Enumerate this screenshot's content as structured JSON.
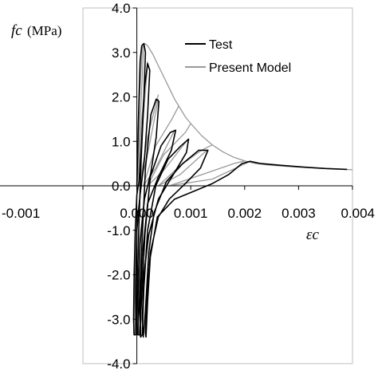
{
  "chart_data": {
    "type": "line",
    "xlabel": "εc",
    "ylabel": "fc",
    "ylabel_unit": "(MPa)",
    "xlim": [
      -0.001,
      0.004
    ],
    "ylim": [
      -4.0,
      4.0
    ],
    "grid": false,
    "legend_position": "top-right",
    "x_ticks": [
      {
        "value": -0.001,
        "label": "-0.001"
      },
      {
        "value": 0.0,
        "label": "0.000"
      },
      {
        "value": 0.001,
        "label": "0.001"
      },
      {
        "value": 0.002,
        "label": "0.002"
      },
      {
        "value": 0.003,
        "label": "0.003"
      },
      {
        "value": 0.004,
        "label": "0.004"
      }
    ],
    "y_ticks": [
      {
        "value": 4.0,
        "label": "4.0"
      },
      {
        "value": 3.0,
        "label": "3.0"
      },
      {
        "value": 2.0,
        "label": "2.0"
      },
      {
        "value": 1.0,
        "label": "1.0"
      },
      {
        "value": 0.0,
        "label": "0.0"
      },
      {
        "value": -1.0,
        "label": "-1.0"
      },
      {
        "value": -2.0,
        "label": "-2.0"
      },
      {
        "value": -3.0,
        "label": "-3.0"
      },
      {
        "value": -4.0,
        "label": "-4.0"
      }
    ],
    "series": [
      {
        "name": "Test",
        "color": "#000000",
        "segments": [
          [
            [
              0.0,
              0.0
            ],
            [
              3e-05,
              1.5
            ],
            [
              6e-05,
              2.8
            ],
            [
              9e-05,
              3.15
            ],
            [
              0.00013,
              3.2
            ],
            [
              0.00016,
              3.0
            ],
            [
              0.00013,
              2.0
            ],
            [
              8e-05,
              0.8
            ],
            [
              4e-05,
              0.1
            ],
            [
              0.0,
              -0.2
            ],
            [
              -3e-05,
              -1.0
            ],
            [
              -5e-05,
              -2.0
            ],
            [
              -6e-05,
              -3.0
            ],
            [
              -5e-05,
              -3.35
            ],
            [
              -2e-05,
              -3.35
            ],
            [
              0.0,
              -2.7
            ],
            [
              3e-05,
              -1.2
            ],
            [
              8e-05,
              0.6
            ],
            [
              0.00014,
              2.2
            ],
            [
              0.0002,
              2.75
            ],
            [
              0.00024,
              2.6
            ],
            [
              0.0002,
              1.6
            ],
            [
              0.00014,
              0.6
            ],
            [
              6e-05,
              -0.2
            ]
          ],
          [
            [
              6e-05,
              -0.2
            ],
            [
              0.0,
              -1.0
            ],
            [
              -2e-05,
              -2.2
            ],
            [
              -2e-05,
              -3.3
            ],
            [
              1e-05,
              -3.35
            ],
            [
              4e-05,
              -2.8
            ],
            [
              9e-05,
              -1.4
            ],
            [
              0.00016,
              0.4
            ],
            [
              0.00026,
              1.6
            ],
            [
              0.00036,
              1.95
            ],
            [
              0.00041,
              1.9
            ],
            [
              0.00036,
              1.1
            ],
            [
              0.00026,
              0.3
            ],
            [
              0.00014,
              -0.3
            ]
          ],
          [
            [
              0.00014,
              -0.3
            ],
            [
              6e-05,
              -1.3
            ],
            [
              2e-05,
              -2.5
            ],
            [
              2e-05,
              -3.35
            ],
            [
              5e-05,
              -3.35
            ],
            [
              9e-05,
              -2.5
            ],
            [
              0.00015,
              -1.1
            ],
            [
              0.00025,
              0.2
            ],
            [
              0.00045,
              0.9
            ],
            [
              0.00062,
              1.2
            ],
            [
              0.00072,
              1.25
            ],
            [
              0.00064,
              0.8
            ],
            [
              0.0004,
              0.2
            ],
            [
              0.0002,
              -0.4
            ]
          ],
          [
            [
              0.0002,
              -0.4
            ],
            [
              0.0001,
              -1.6
            ],
            [
              6e-05,
              -2.8
            ],
            [
              7e-05,
              -3.4
            ],
            [
              0.0001,
              -3.35
            ],
            [
              0.00013,
              -2.3
            ],
            [
              0.0002,
              -1.0
            ],
            [
              0.00035,
              0.0
            ],
            [
              0.00058,
              0.6
            ],
            [
              0.00082,
              0.9
            ],
            [
              0.00096,
              1.05
            ],
            [
              0.00092,
              0.75
            ],
            [
              0.0007,
              0.3
            ],
            [
              0.0004,
              -0.3
            ]
          ],
          [
            [
              0.0004,
              -0.3
            ],
            [
              0.00022,
              -1.1
            ],
            [
              0.00013,
              -2.0
            ],
            [
              0.0001,
              -3.0
            ],
            [
              0.00012,
              -3.4
            ],
            [
              0.00016,
              -2.8
            ],
            [
              0.00022,
              -1.5
            ],
            [
              0.00032,
              -0.6
            ],
            [
              0.00055,
              0.1
            ],
            [
              0.00085,
              0.5
            ],
            [
              0.00115,
              0.8
            ],
            [
              0.00132,
              0.8
            ],
            [
              0.00118,
              0.4
            ],
            [
              0.0009,
              0.05
            ],
            [
              0.0006,
              -0.3
            ]
          ],
          [
            [
              0.0006,
              -0.3
            ],
            [
              0.0004,
              -0.7
            ],
            [
              0.00025,
              -1.5
            ],
            [
              0.00018,
              -2.6
            ],
            [
              0.00016,
              -3.3
            ],
            [
              0.00017,
              -3.4
            ],
            [
              0.0002,
              -2.6
            ],
            [
              0.00025,
              -1.6
            ],
            [
              0.00038,
              -0.7
            ],
            [
              0.0007,
              -0.3
            ],
            [
              0.0011,
              -0.1
            ],
            [
              0.0014,
              0.05
            ],
            [
              0.0017,
              0.25
            ],
            [
              0.00195,
              0.5
            ],
            [
              0.0021,
              0.55
            ],
            [
              0.0023,
              0.5
            ],
            [
              0.0027,
              0.46
            ],
            [
              0.0031,
              0.42
            ],
            [
              0.0035,
              0.39
            ],
            [
              0.0039,
              0.37
            ]
          ]
        ]
      },
      {
        "name": "Present Model",
        "color": "#999999",
        "segments": [
          [
            [
              0.0,
              0.0
            ],
            [
              5e-05,
              2.0
            ],
            [
              0.0001,
              3.1
            ],
            [
              0.00015,
              3.2
            ],
            [
              0.0002,
              3.15
            ],
            [
              0.0003,
              2.95
            ],
            [
              0.0004,
              2.7
            ],
            [
              0.0005,
              2.45
            ],
            [
              0.0006,
              2.2
            ],
            [
              0.0007,
              1.95
            ],
            [
              0.0008,
              1.75
            ],
            [
              0.0009,
              1.55
            ],
            [
              0.001,
              1.4
            ],
            [
              0.0012,
              1.13
            ],
            [
              0.0014,
              0.92
            ],
            [
              0.0016,
              0.76
            ],
            [
              0.0018,
              0.64
            ],
            [
              0.002,
              0.56
            ],
            [
              0.0022,
              0.5
            ],
            [
              0.0025,
              0.46
            ],
            [
              0.003,
              0.42
            ],
            [
              0.0035,
              0.39
            ],
            [
              0.004,
              0.36
            ]
          ],
          [
            [
              0.00013,
              3.2
            ],
            [
              5e-05,
              1.2
            ],
            [
              0.0,
              0.0
            ]
          ],
          [
            [
              0.0002,
              2.75
            ],
            [
              7e-05,
              0.8
            ],
            [
              0.0,
              0.0
            ],
            [
              9e-05,
              1.5
            ],
            [
              0.0002,
              2.8
            ]
          ],
          [
            [
              0.0004,
              1.95
            ],
            [
              0.00018,
              0.6
            ],
            [
              5e-05,
              0.0
            ],
            [
              0.0002,
              1.1
            ],
            [
              0.0004,
              2.05
            ]
          ],
          [
            [
              0.0007,
              1.25
            ],
            [
              0.00035,
              0.4
            ],
            [
              0.00012,
              0.0
            ],
            [
              0.00035,
              0.9
            ],
            [
              0.00065,
              1.5
            ],
            [
              0.00078,
              1.8
            ]
          ],
          [
            [
              0.00095,
              1.05
            ],
            [
              0.0005,
              0.35
            ],
            [
              0.0002,
              0.0
            ],
            [
              0.0005,
              0.7
            ],
            [
              0.0009,
              1.2
            ],
            [
              0.001,
              1.4
            ]
          ],
          [
            [
              0.0013,
              0.8
            ],
            [
              0.0008,
              0.25
            ],
            [
              0.0004,
              0.0
            ],
            [
              0.0008,
              0.45
            ],
            [
              0.0012,
              0.8
            ],
            [
              0.0014,
              0.92
            ]
          ],
          [
            [
              0.0021,
              0.55
            ],
            [
              0.0014,
              0.15
            ],
            [
              0.0006,
              0.0
            ],
            [
              0.0012,
              0.25
            ],
            [
              0.0018,
              0.5
            ],
            [
              0.002,
              0.56
            ]
          ],
          [
            [
              5e-05,
              -0.3
            ],
            [
              0.0,
              -0.8
            ],
            [
              -5e-05,
              -3.0
            ],
            [
              -6e-05,
              -3.35
            ]
          ],
          [
            [
              0.00014,
              -0.3
            ],
            [
              5e-05,
              -1.2
            ],
            [
              3e-05,
              -3.3
            ]
          ],
          [
            [
              0.0002,
              -0.4
            ],
            [
              0.0001,
              -1.5
            ],
            [
              7e-05,
              -3.35
            ]
          ]
        ]
      }
    ]
  }
}
